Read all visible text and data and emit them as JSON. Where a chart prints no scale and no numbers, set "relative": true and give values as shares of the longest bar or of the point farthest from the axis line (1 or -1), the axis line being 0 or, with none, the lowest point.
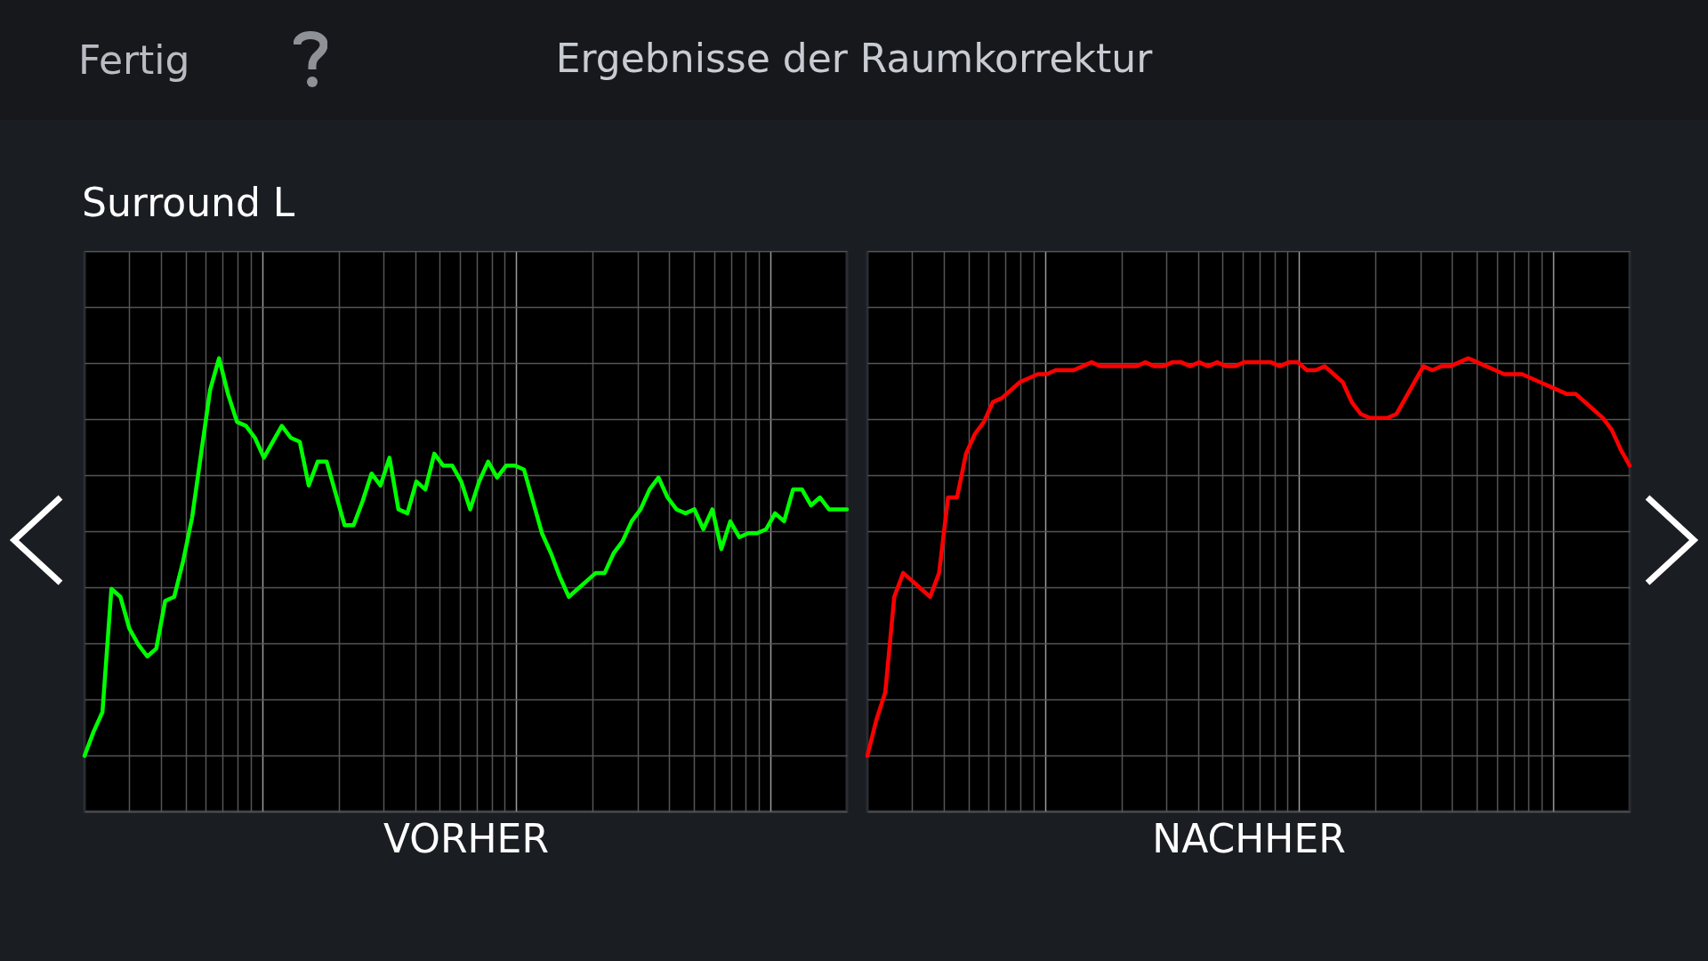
{
  "chart_data": [
    {
      "type": "line",
      "title": "Ergebnisse der Raumkorrektur",
      "subtitle": "Surround L",
      "xlabel": "VORHER",
      "annotations": [
        "Fertig"
      ],
      "relative": true,
      "grid": true,
      "tick_labels": false,
      "categories": [
        null,
        null,
        null,
        null,
        null,
        null,
        null,
        null,
        null,
        null,
        null,
        null,
        null,
        null,
        null,
        null,
        null,
        null,
        null,
        null,
        null,
        null,
        null,
        null,
        null,
        null,
        null,
        null,
        null,
        null,
        null,
        null,
        null,
        null,
        null,
        null,
        null,
        null,
        null,
        null,
        null,
        null,
        null,
        null,
        null,
        null,
        null,
        null,
        null,
        null,
        null,
        null,
        null,
        null,
        null,
        null,
        null,
        null,
        null,
        null,
        null,
        null,
        null,
        null,
        null,
        null,
        null,
        null,
        null,
        null,
        null,
        null,
        null,
        null,
        null,
        null,
        null,
        null,
        null,
        null,
        null,
        null,
        null,
        null,
        null,
        null
      ],
      "series": [
        {
          "color": "#00ff00",
          "values": [
            0,
            0.06,
            0.11,
            0.42,
            0.4,
            0.32,
            0.28,
            0.25,
            0.27,
            0.39,
            0.4,
            0.49,
            0.6,
            0.76,
            0.92,
            1,
            0.91,
            0.84,
            0.83,
            0.8,
            0.75,
            0.79,
            0.83,
            0.8,
            0.79,
            0.68,
            0.74,
            0.74,
            0.66,
            0.58,
            0.58,
            0.64,
            0.71,
            0.68,
            0.75,
            0.62,
            0.61,
            0.69,
            0.67,
            0.76,
            0.73,
            0.73,
            0.69,
            0.62,
            0.69,
            0.74,
            0.7,
            0.73,
            0.73,
            0.72,
            0.64,
            0.56,
            0.51,
            0.45,
            0.4,
            0.42,
            0.44,
            0.46,
            0.46,
            0.51,
            0.54,
            0.59,
            0.62,
            0.67,
            0.7,
            0.65,
            0.62,
            0.61,
            0.62,
            0.57,
            0.62,
            0.52,
            0.59,
            0.55,
            0.56,
            0.56,
            0.57,
            0.61,
            0.59,
            0.67,
            0.67,
            0.63,
            0.65,
            0.62,
            0.62,
            0.62
          ]
        }
      ]
    },
    {
      "type": "line",
      "xlabel": "NACHHER",
      "relative": true,
      "grid": true,
      "tick_labels": false,
      "categories": [
        null,
        null,
        null,
        null,
        null,
        null,
        null,
        null,
        null,
        null,
        null,
        null,
        null,
        null,
        null,
        null,
        null,
        null,
        null,
        null,
        null,
        null,
        null,
        null,
        null,
        null,
        null,
        null,
        null,
        null,
        null,
        null,
        null,
        null,
        null,
        null,
        null,
        null,
        null,
        null,
        null,
        null,
        null,
        null,
        null,
        null,
        null,
        null,
        null,
        null,
        null,
        null,
        null,
        null,
        null,
        null,
        null,
        null,
        null,
        null,
        null,
        null,
        null,
        null,
        null,
        null,
        null,
        null,
        null,
        null,
        null,
        null,
        null,
        null,
        null,
        null,
        null,
        null,
        null,
        null,
        null,
        null,
        null,
        null,
        null,
        null
      ],
      "series": [
        {
          "color": "#ff0000",
          "values": [
            0,
            0.09,
            0.16,
            0.4,
            0.46,
            0.44,
            0.42,
            0.4,
            0.46,
            0.65,
            0.65,
            0.76,
            0.81,
            0.84,
            0.89,
            0.9,
            0.92,
            0.94,
            0.95,
            0.96,
            0.96,
            0.97,
            0.97,
            0.97,
            0.98,
            0.99,
            0.98,
            0.98,
            0.98,
            0.98,
            0.98,
            0.99,
            0.98,
            0.98,
            0.99,
            0.99,
            0.98,
            0.99,
            0.98,
            0.99,
            0.98,
            0.98,
            0.99,
            0.99,
            0.99,
            0.99,
            0.98,
            0.99,
            0.99,
            0.97,
            0.97,
            0.98,
            0.96,
            0.94,
            0.89,
            0.86,
            0.85,
            0.85,
            0.85,
            0.86,
            0.9,
            0.94,
            0.98,
            0.97,
            0.98,
            0.98,
            0.99,
            1,
            0.99,
            0.98,
            0.97,
            0.96,
            0.96,
            0.96,
            0.95,
            0.94,
            0.93,
            0.92,
            0.91,
            0.91,
            0.89,
            0.87,
            0.85,
            0.82,
            0.77,
            0.73
          ]
        }
      ]
    }
  ]
}
